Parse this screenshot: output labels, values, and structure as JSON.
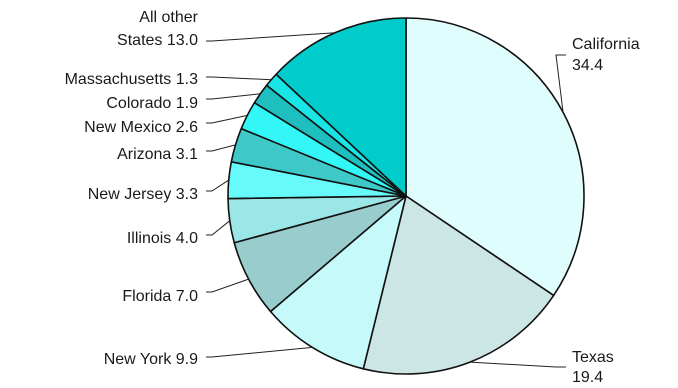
{
  "chart_data": {
    "type": "pie",
    "title": "",
    "unit": "",
    "slices": [
      {
        "label": "California",
        "value": 34.4,
        "color": "#e0fdfd"
      },
      {
        "label": "Texas",
        "value": 19.4,
        "color": "#cce6e6"
      },
      {
        "label": "New York",
        "value": 9.9,
        "color": "#c6fafa"
      },
      {
        "label": "Florida",
        "value": 7.0,
        "color": "#99cccc"
      },
      {
        "label": "Illinois",
        "value": 4.0,
        "color": "#9be6e6"
      },
      {
        "label": "New Jersey",
        "value": 3.3,
        "color": "#66fafa"
      },
      {
        "label": "Arizona",
        "value": 3.1,
        "color": "#3fc8c8"
      },
      {
        "label": "New Mexico",
        "value": 2.6,
        "color": "#33f6f6"
      },
      {
        "label": "Colorado",
        "value": 1.9,
        "color": "#1fbfbf"
      },
      {
        "label": "Massachusetts",
        "value": 1.3,
        "color": "#18e6e6"
      },
      {
        "label": "All other States",
        "value": 13.0,
        "color": "#00cccc"
      }
    ],
    "labels": [
      {
        "lines": [
          "California",
          "34.4"
        ],
        "side": "right"
      },
      {
        "lines": [
          "Texas",
          "19.4"
        ],
        "side": "right"
      },
      {
        "lines": [
          "New York 9.9"
        ],
        "side": "left"
      },
      {
        "lines": [
          "Florida 7.0"
        ],
        "side": "left"
      },
      {
        "lines": [
          "Illinois 4.0"
        ],
        "side": "left"
      },
      {
        "lines": [
          "New Jersey 3.3"
        ],
        "side": "left"
      },
      {
        "lines": [
          "Arizona 3.1"
        ],
        "side": "left"
      },
      {
        "lines": [
          "New Mexico 2.6"
        ],
        "side": "left"
      },
      {
        "lines": [
          "Colorado 1.9"
        ],
        "side": "left"
      },
      {
        "lines": [
          "Massachusetts 1.3"
        ],
        "side": "left"
      },
      {
        "lines": [
          "All other",
          "States 13.0"
        ],
        "side": "left"
      }
    ],
    "start_angle_deg": 0,
    "direction": "clockwise",
    "legend": "none"
  }
}
